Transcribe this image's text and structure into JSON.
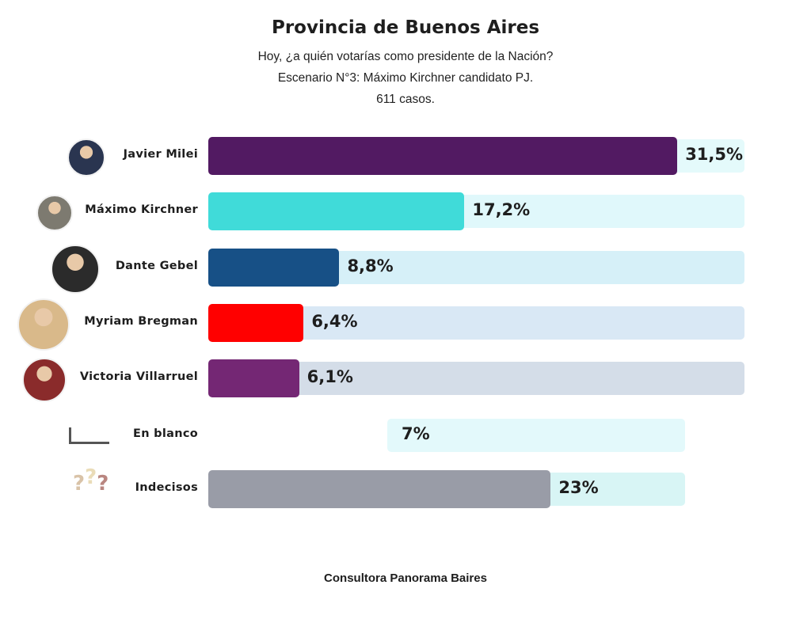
{
  "title": "Provincia de Buenos Aires",
  "subtitle_lines": [
    "Hoy, ¿a quién votarías como presidente de la Nación?",
    "Escenario N°3: Máximo Kirchner candidato PJ.",
    "611 casos."
  ],
  "footer": "Consultora Panorama Baires",
  "chart_data": {
    "type": "bar",
    "orientation": "horizontal",
    "title": "Provincia de Buenos Aires",
    "categories": [
      "Javier Milei",
      "Máximo Kirchner",
      "Dante Gebel",
      "Myriam Bregman",
      "Victoria Villarruel",
      "En blanco",
      "Indecisos"
    ],
    "values": [
      31.5,
      17.2,
      8.8,
      6.4,
      6.1,
      7,
      23
    ],
    "data_labels": [
      "31,5%",
      "17,2%",
      "8,8%",
      "6,4%",
      "6,1%",
      "7%",
      "23%"
    ],
    "colors": [
      "#521a62",
      "#40dbd9",
      "#175086",
      "#ff0000",
      "#742774",
      "#ffffff",
      "#999ca7"
    ],
    "track_colors": [
      "#e4fafb",
      "#e0f8fb",
      "#d6f0f8",
      "#d9e8f5",
      "#d4dde8",
      "#e3f9fb",
      "#d8f5f5"
    ],
    "icons": [
      "photo-avatar",
      "photo-avatar",
      "photo-avatar",
      "photo-avatar",
      "photo-avatar",
      "blank-corner-icon",
      "question-marks-icon"
    ],
    "grid": false,
    "legend": "none"
  }
}
